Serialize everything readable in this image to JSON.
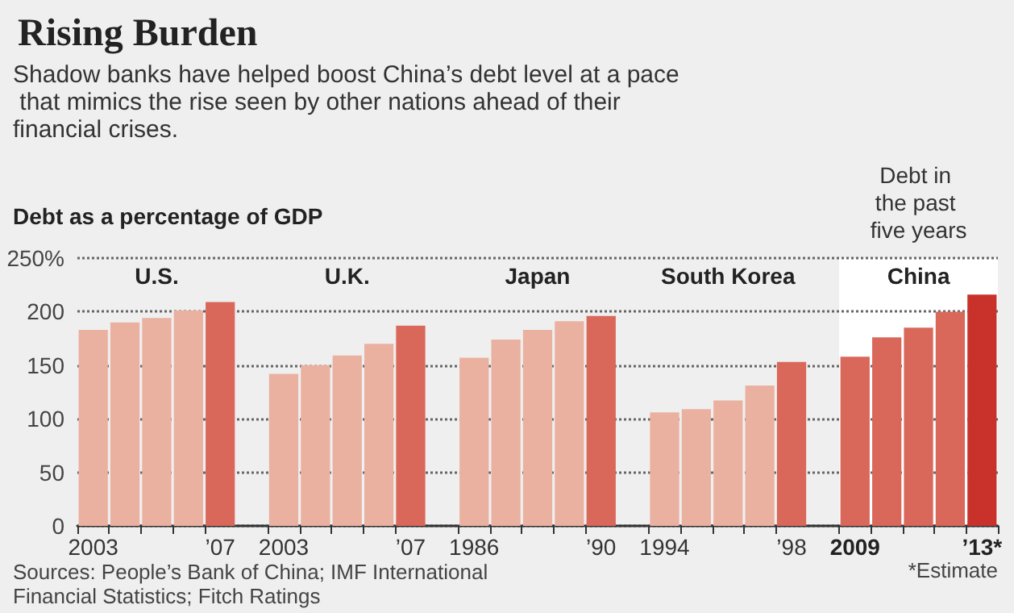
{
  "chart_data": {
    "type": "bar",
    "title": "Rising Burden",
    "subtitle": "Shadow banks have helped boost China’s debt level at a pace that mimics the rise seen by other nations ahead of their financial crises.",
    "ylabel": "Debt as a percentage of GDP",
    "categories": [
      "2003",
      null,
      null,
      null,
      "’07",
      null,
      "2003",
      null,
      null,
      null,
      "’07",
      null,
      "1986",
      null,
      null,
      null,
      "’90",
      null,
      "1994",
      null,
      null,
      null,
      "’98",
      null,
      "2009",
      null,
      null,
      null,
      "’13*"
    ],
    "values": [
      183,
      190,
      194,
      201,
      209,
      null,
      142,
      150,
      159,
      170,
      187,
      null,
      157,
      174,
      183,
      191,
      196,
      null,
      106,
      109,
      117,
      131,
      153,
      null,
      158,
      176,
      185,
      200,
      216
    ],
    "colors": [
      "#ebb1a0",
      "#ebb1a0",
      "#ebb1a0",
      "#ebb1a0",
      "#d9675a",
      null,
      "#ebb1a0",
      "#ebb1a0",
      "#ebb1a0",
      "#ebb1a0",
      "#d9675a",
      null,
      "#ebb1a0",
      "#ebb1a0",
      "#ebb1a0",
      "#ebb1a0",
      "#d9675a",
      null,
      "#ebb1a0",
      "#ebb1a0",
      "#ebb1a0",
      "#ebb1a0",
      "#d9675a",
      null,
      "#d9675a",
      "#d9675a",
      "#d9675a",
      "#d9675a",
      "#c8322b"
    ],
    "ylim": [
      0,
      250
    ],
    "yticks": [
      0,
      50,
      100,
      150,
      200,
      {
        "value": 250,
        "label": "250%"
      }
    ],
    "grid": "y",
    "bands": [
      {
        "axis": "x",
        "from": "2009",
        "to": "’13*",
        "color": "#ffffff"
      }
    ],
    "annotations": [
      "U.S.",
      "U.K.",
      "Japan",
      "South Korea",
      "China",
      "Debt in the past five years",
      "Sources: People’s Bank of China; IMF International Financial Statistics; Fitch Ratings",
      "*Estimate"
    ]
  }
}
